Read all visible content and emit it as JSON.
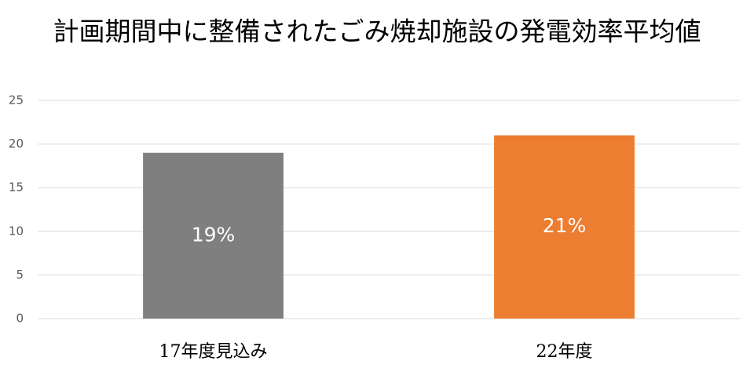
{
  "chart_data": {
    "type": "bar",
    "title": "計画期間中に整備されたごみ焼却施設の発電効率平均値",
    "categories": [
      "17年度見込み",
      "22年度"
    ],
    "values": [
      19,
      21
    ],
    "value_labels": [
      "19%",
      "21%"
    ],
    "colors": [
      "#7f7f7f",
      "#ed7d31"
    ],
    "ylim": [
      0,
      25
    ],
    "yticks": [
      0,
      5,
      10,
      15,
      20,
      25
    ],
    "grid": true
  }
}
